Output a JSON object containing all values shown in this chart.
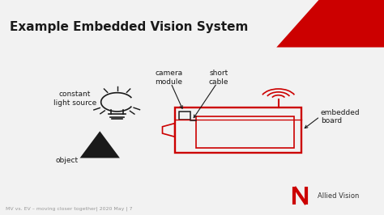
{
  "title": "Example Embedded Vision System",
  "title_fontsize": 11,
  "title_fontweight": "bold",
  "bg_color": "#f2f2f2",
  "content_bg": "#ffffff",
  "red": "#cc0000",
  "dark": "#1a1a1a",
  "header_bg": "#dcdcdc",
  "footer_text": "MV vs. EV – moving closer together| 2020 May | 7",
  "footer_fontsize": 4.5,
  "labels": {
    "constant_light": "constant\nlight source",
    "object": "object",
    "camera_module": "camera\nmodule",
    "short_cable": "short\ncable",
    "embedded_board": "embedded\nboard"
  },
  "label_fontsize": 6.5
}
